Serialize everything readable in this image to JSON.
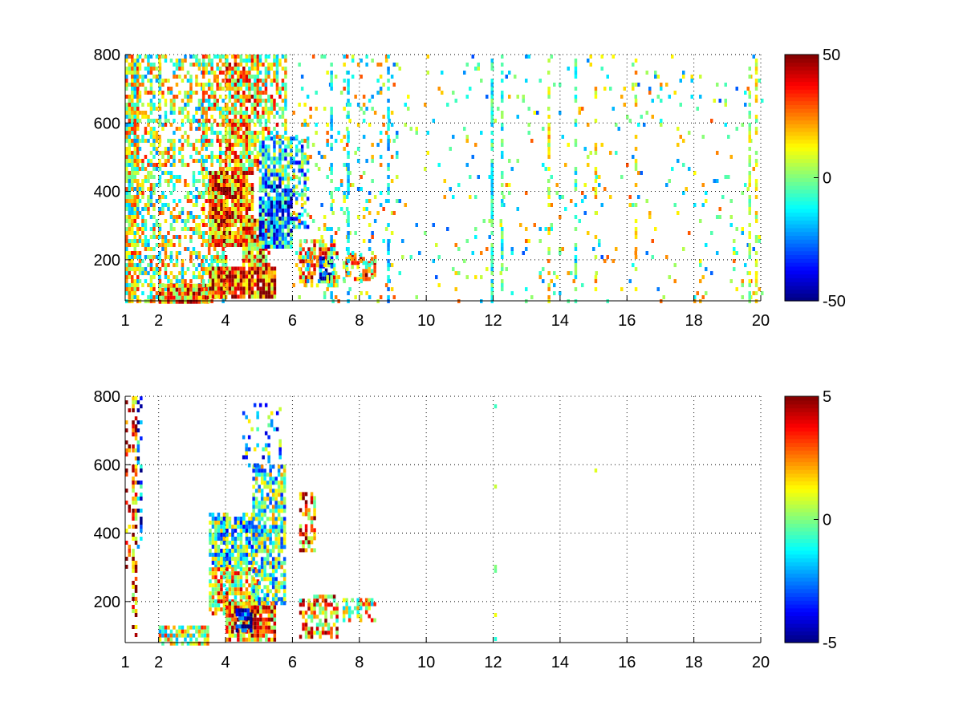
{
  "chart_data": [
    {
      "type": "heatmap",
      "title": "",
      "xlabel": "",
      "ylabel": "",
      "xlim": [
        1,
        20
      ],
      "ylim": [
        80,
        800
      ],
      "xticks": [
        "1",
        "2",
        "4",
        "6",
        "8",
        "10",
        "12",
        "14",
        "16",
        "18",
        "20"
      ],
      "xtick_values": [
        1,
        2,
        4,
        6,
        8,
        10,
        12,
        14,
        16,
        18,
        20
      ],
      "yticks": [
        "200",
        "400",
        "600",
        "800"
      ],
      "ytick_values": [
        200,
        400,
        600,
        800
      ],
      "grid": "dotted",
      "colormap": "jet",
      "colorbar": {
        "min": -50,
        "max": 50,
        "ticks": [
          "50",
          "0",
          "-50"
        ],
        "tick_values": [
          50,
          0,
          -50
        ]
      },
      "regions": [
        {
          "x": [
            1.0,
            1.4
          ],
          "y": [
            80,
            800
          ],
          "value": 6,
          "density": 0.85
        },
        {
          "x": [
            1.4,
            2.0
          ],
          "y": [
            80,
            800
          ],
          "value": 5,
          "density": 0.5
        },
        {
          "x": [
            2.0,
            3.3
          ],
          "y": [
            80,
            800
          ],
          "value": 4,
          "density": 0.4
        },
        {
          "x": [
            2.0,
            3.5
          ],
          "y": [
            80,
            130
          ],
          "value": 26,
          "density": 0.95
        },
        {
          "x": [
            3.3,
            4.0
          ],
          "y": [
            80,
            800
          ],
          "value": 10,
          "density": 0.6
        },
        {
          "x": [
            3.5,
            4.8
          ],
          "y": [
            240,
            460
          ],
          "value": 28,
          "density": 0.95
        },
        {
          "x": [
            4.0,
            5.0
          ],
          "y": [
            460,
            800
          ],
          "value": 16,
          "density": 0.8
        },
        {
          "x": [
            3.5,
            5.5
          ],
          "y": [
            90,
            180
          ],
          "value": 32,
          "density": 0.95
        },
        {
          "x": [
            4.5,
            5.3
          ],
          "y": [
            180,
            320
          ],
          "value": 24,
          "density": 0.9
        },
        {
          "x": [
            5.0,
            6.0
          ],
          "y": [
            240,
            420
          ],
          "value": -22,
          "density": 0.9
        },
        {
          "x": [
            5.0,
            6.0
          ],
          "y": [
            420,
            560
          ],
          "value": -10,
          "density": 0.8
        },
        {
          "x": [
            5.0,
            5.8
          ],
          "y": [
            560,
            800
          ],
          "value": 10,
          "density": 0.6
        },
        {
          "x": [
            6.0,
            6.5
          ],
          "y": [
            300,
            560
          ],
          "value": -12,
          "density": 0.45
        },
        {
          "x": [
            6.2,
            7.3
          ],
          "y": [
            120,
            260
          ],
          "value": 18,
          "density": 0.6
        },
        {
          "x": [
            6.8,
            7.2
          ],
          "y": [
            150,
            210
          ],
          "value": -40,
          "density": 0.6
        },
        {
          "x": [
            7.5,
            8.5
          ],
          "y": [
            140,
            220
          ],
          "value": 20,
          "density": 0.55
        },
        {
          "x": [
            6.0,
            9.0
          ],
          "y": [
            80,
            800
          ],
          "value": 2,
          "density": 0.12
        },
        {
          "x": [
            9.0,
            20.0
          ],
          "y": [
            80,
            800
          ],
          "value": 0,
          "density": 0.05
        }
      ],
      "stripes": [
        {
          "x": 7.2,
          "value": -12,
          "density": 0.6
        },
        {
          "x": 7.7,
          "value": -15,
          "density": 0.6
        },
        {
          "x": 8.9,
          "value": -15,
          "density": 0.5
        },
        {
          "x": 12.0,
          "value": -10,
          "density": 0.75
        },
        {
          "x": 12.3,
          "value": -8,
          "density": 0.55
        },
        {
          "x": 13.7,
          "value": 12,
          "density": 0.45
        },
        {
          "x": 14.5,
          "value": -8,
          "density": 0.45
        },
        {
          "x": 15.1,
          "value": 16,
          "density": 0.4
        },
        {
          "x": 16.3,
          "value": 14,
          "density": 0.3
        },
        {
          "x": 19.7,
          "value": 6,
          "density": 0.5
        },
        {
          "x": 19.9,
          "value": 10,
          "density": 0.45
        }
      ]
    },
    {
      "type": "heatmap",
      "title": "",
      "xlabel": "",
      "ylabel": "",
      "xlim": [
        1,
        20
      ],
      "ylim": [
        80,
        800
      ],
      "xticks": [
        "1",
        "2",
        "4",
        "6",
        "8",
        "10",
        "12",
        "14",
        "16",
        "18",
        "20"
      ],
      "xtick_values": [
        1,
        2,
        4,
        6,
        8,
        10,
        12,
        14,
        16,
        18,
        20
      ],
      "yticks": [
        "200",
        "400",
        "600",
        "800"
      ],
      "ytick_values": [
        200,
        400,
        600,
        800
      ],
      "grid": "dotted",
      "colormap": "jet",
      "colorbar": {
        "min": -5,
        "max": 5,
        "ticks": [
          "5",
          "0",
          "-5"
        ],
        "tick_values": [
          5,
          0,
          -5
        ]
      },
      "regions": [
        {
          "x": [
            1.0,
            1.1
          ],
          "y": [
            300,
            800
          ],
          "value": 4,
          "density": 0.3
        },
        {
          "x": [
            1.2,
            1.3
          ],
          "y": [
            100,
            800
          ],
          "value": 3,
          "density": 0.55
        },
        {
          "x": [
            1.35,
            1.45
          ],
          "y": [
            340,
            800
          ],
          "value": -3,
          "density": 0.45
        },
        {
          "x": [
            2.0,
            3.5
          ],
          "y": [
            80,
            130
          ],
          "value": 0.5,
          "density": 0.8
        },
        {
          "x": [
            3.5,
            4.8
          ],
          "y": [
            300,
            460
          ],
          "value": -1,
          "density": 0.85
        },
        {
          "x": [
            3.5,
            5.0
          ],
          "y": [
            160,
            300
          ],
          "value": 1.5,
          "density": 0.85
        },
        {
          "x": [
            4.0,
            5.5
          ],
          "y": [
            90,
            200
          ],
          "value": 2.5,
          "density": 0.9
        },
        {
          "x": [
            4.3,
            4.8
          ],
          "y": [
            120,
            180
          ],
          "value": -4.5,
          "density": 0.75
        },
        {
          "x": [
            4.8,
            5.8
          ],
          "y": [
            200,
            600
          ],
          "value": -0.5,
          "density": 0.75
        },
        {
          "x": [
            4.5,
            5.6
          ],
          "y": [
            600,
            780
          ],
          "value": -1.5,
          "density": 0.25
        },
        {
          "x": [
            6.2,
            6.7
          ],
          "y": [
            350,
            520
          ],
          "value": 2.5,
          "density": 0.6
        },
        {
          "x": [
            6.2,
            7.3
          ],
          "y": [
            100,
            220
          ],
          "value": 2,
          "density": 0.6
        },
        {
          "x": [
            7.5,
            8.5
          ],
          "y": [
            150,
            210
          ],
          "value": 1,
          "density": 0.5
        }
      ],
      "stripes": [
        {
          "x": 12.1,
          "value": 0,
          "density": 0.03
        },
        {
          "x": 15.1,
          "value": 1,
          "density": 0.03
        }
      ]
    }
  ]
}
